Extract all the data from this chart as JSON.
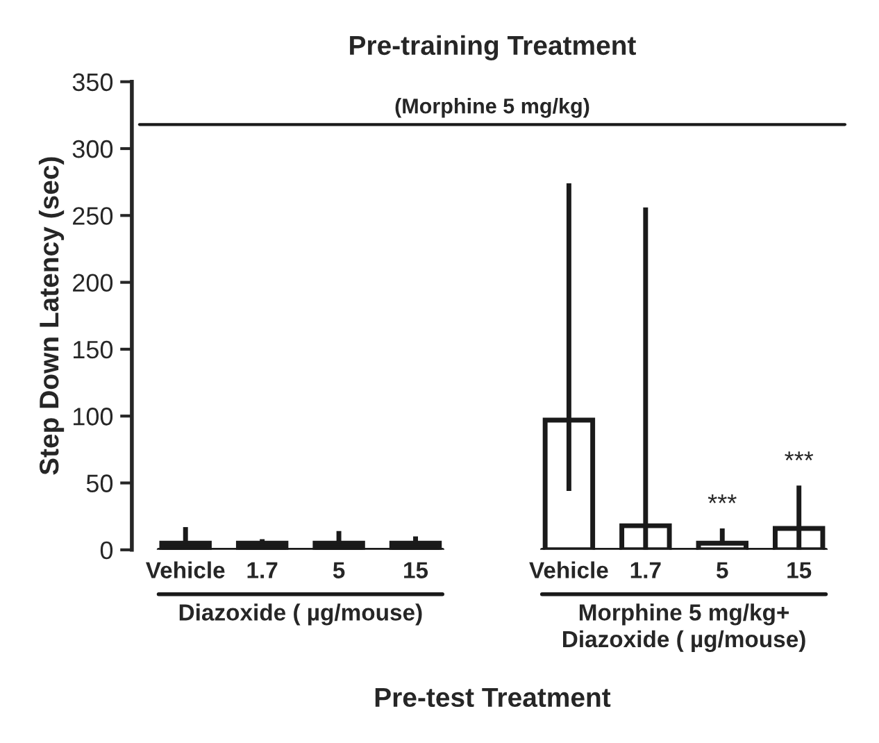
{
  "chart_data": {
    "type": "bar",
    "title": "Pre-training Treatment",
    "xlabel": "Pre-test Treatment",
    "ylabel": "Step Down Latency (sec)",
    "categories": [
      "Vehicle",
      "1.7",
      "5",
      "15",
      null,
      "Vehicle",
      "1.7",
      "5",
      "15"
    ],
    "values": [
      5,
      5,
      5,
      5,
      null,
      97,
      18,
      5,
      16
    ],
    "colors": [
      "#1a1a1a",
      "#1a1a1a",
      "#1a1a1a",
      "#1a1a1a",
      null,
      "#ffffff",
      "#ffffff",
      "#ffffff",
      "#ffffff"
    ],
    "errors": [
      [
        5,
        17
      ],
      [
        5,
        8
      ],
      [
        5,
        14
      ],
      [
        5,
        10
      ],
      null,
      [
        44,
        274
      ],
      [
        0,
        256
      ],
      [
        5,
        16
      ],
      [
        0,
        48
      ]
    ],
    "ylim": [
      0,
      350
    ],
    "yticks": [
      0,
      50,
      100,
      150,
      200,
      250,
      300,
      350
    ],
    "ref_lines": [
      {
        "axis": "y",
        "value": 318,
        "label": "(Morphine 5 mg/kg)"
      }
    ],
    "annotations": [
      "Diazoxide ( µg/mouse)",
      "Morphine 5 mg/kg+\nDiazoxide ( µg/mouse)"
    ],
    "value_labels": [
      null,
      null,
      null,
      null,
      null,
      null,
      null,
      "***",
      "***"
    ],
    "grid": false,
    "legend": false
  }
}
